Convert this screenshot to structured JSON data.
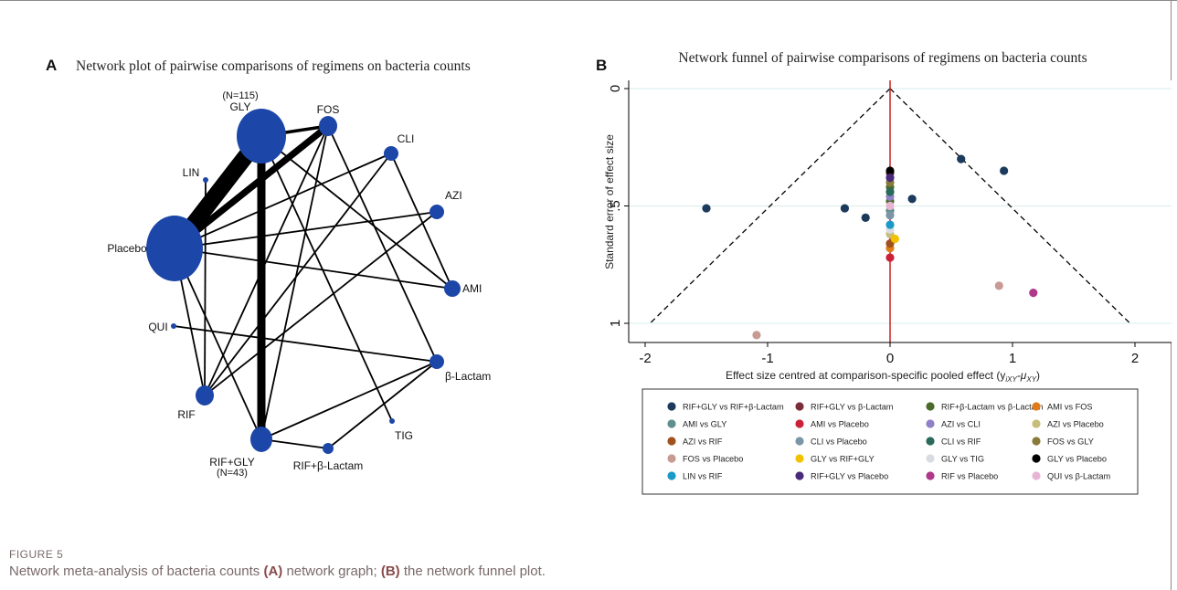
{
  "figure": {
    "label": "FIGURE 5",
    "caption_pre": "Network meta-analysis of bacteria counts ",
    "caption_a": "(A)",
    "caption_mid": " network graph; ",
    "caption_b": "(B)",
    "caption_post": " the network funnel plot."
  },
  "panel_a": {
    "letter": "A",
    "title": "Network plot of pairwise comparisons of regimens on bacteria counts"
  },
  "panel_b": {
    "letter": "B",
    "title": "Network funnel of pairwise comparisons of regimens on bacteria counts"
  },
  "chart_data": [
    {
      "type": "network",
      "title": "Network plot of pairwise comparisons of regimens on bacteria counts",
      "nodes": [
        {
          "id": "GLY",
          "label": "GLY",
          "note": "(N=115)",
          "size": 115
        },
        {
          "id": "FOS",
          "label": "FOS",
          "size": 12
        },
        {
          "id": "CLI",
          "label": "CLI",
          "size": 9
        },
        {
          "id": "LIN",
          "label": "LIN",
          "size": 2
        },
        {
          "id": "AZI",
          "label": "AZI",
          "size": 9
        },
        {
          "id": "Placebo",
          "label": "Placebo",
          "size": 130
        },
        {
          "id": "AMI",
          "label": "AMI",
          "size": 9
        },
        {
          "id": "QUI",
          "label": "QUI",
          "size": 2
        },
        {
          "id": "bLactam",
          "label": "β-Lactam",
          "size": 9
        },
        {
          "id": "RIF",
          "label": "RIF",
          "size": 14
        },
        {
          "id": "TIG",
          "label": "TIG",
          "size": 2
        },
        {
          "id": "RIFGLY",
          "label": "RIF+GLY",
          "note": "(N=43)",
          "size": 43
        },
        {
          "id": "RIFbLactam",
          "label": "RIF+β-Lactam",
          "size": 5
        }
      ],
      "edges": [
        {
          "source": "GLY",
          "target": "Placebo",
          "weight": 10
        },
        {
          "source": "GLY",
          "target": "RIFGLY",
          "weight": 5
        },
        {
          "source": "GLY",
          "target": "FOS",
          "weight": 2
        },
        {
          "source": "GLY",
          "target": "TIG",
          "weight": 1
        },
        {
          "source": "GLY",
          "target": "AMI",
          "weight": 1
        },
        {
          "source": "Placebo",
          "target": "FOS",
          "weight": 4
        },
        {
          "source": "Placebo",
          "target": "CLI",
          "weight": 1
        },
        {
          "source": "Placebo",
          "target": "AZI",
          "weight": 1
        },
        {
          "source": "Placebo",
          "target": "AMI",
          "weight": 1
        },
        {
          "source": "Placebo",
          "target": "RIF",
          "weight": 1
        },
        {
          "source": "Placebo",
          "target": "RIFGLY",
          "weight": 1
        },
        {
          "source": "LIN",
          "target": "RIF",
          "weight": 1
        },
        {
          "source": "FOS",
          "target": "RIF",
          "weight": 1
        },
        {
          "source": "FOS",
          "target": "bLactam",
          "weight": 1
        },
        {
          "source": "CLI",
          "target": "RIF",
          "weight": 1
        },
        {
          "source": "CLI",
          "target": "AMI",
          "weight": 1
        },
        {
          "source": "AZI",
          "target": "RIF",
          "weight": 1
        },
        {
          "source": "QUI",
          "target": "bLactam",
          "weight": 1
        },
        {
          "source": "bLactam",
          "target": "RIFGLY",
          "weight": 1
        },
        {
          "source": "bLactam",
          "target": "RIFbLactam",
          "weight": 1
        },
        {
          "source": "RIFGLY",
          "target": "RIFbLactam",
          "weight": 1
        },
        {
          "source": "RIFGLY",
          "target": "FOS",
          "weight": 1
        }
      ]
    },
    {
      "type": "scatter",
      "title": "Network funnel of pairwise comparisons of regimens on bacteria counts",
      "xlabel": "Effect size centred at comparison-specific pooled effect (y",
      "xlabel_sub1": "iXY",
      "xlabel_mid": "-μ",
      "xlabel_sub2": "XY",
      "xlabel_end": ")",
      "ylabel": "Standard error of effect size",
      "xlim": [
        -2,
        2
      ],
      "ylim": [
        1,
        0
      ],
      "y_reversed": true,
      "xticks": [
        "-2",
        "-1",
        "0",
        "1",
        "2"
      ],
      "xtick_values": [
        -2,
        -1,
        0,
        1,
        2
      ],
      "yticks": [
        "0",
        ".5",
        "1"
      ],
      "ytick_values": [
        0,
        0.5,
        1
      ],
      "reference_line": {
        "x": 0,
        "color": "#cc2222"
      },
      "funnel": {
        "apex": [
          0,
          0
        ],
        "base_left": [
          -1.96,
          1
        ],
        "base_right": [
          1.96,
          1
        ]
      },
      "series": [
        {
          "name": "RIF+GLY vs RIF+β-Lactam",
          "color": "#1b3a5c",
          "points": [
            [
              -1.5,
              0.51
            ],
            [
              -0.37,
              0.51
            ],
            [
              -0.2,
              0.55
            ],
            [
              0.18,
              0.47
            ],
            [
              0.58,
              0.3
            ],
            [
              0.93,
              0.35
            ]
          ]
        },
        {
          "name": "RIF+GLY vs β-Lactam",
          "color": "#7a2e3a",
          "points": [
            [
              0,
              0.36
            ]
          ]
        },
        {
          "name": "RIF+β-Lactam vs β-Lactam",
          "color": "#4b6b2a",
          "points": [
            [
              0,
              0.42
            ],
            [
              0,
              0.48
            ]
          ]
        },
        {
          "name": "AMI vs FOS",
          "color": "#e07b1a",
          "points": [
            [
              0,
              0.68
            ]
          ]
        },
        {
          "name": "AMI vs GLY",
          "color": "#5f8f8a",
          "points": [
            [
              0,
              0.52
            ]
          ]
        },
        {
          "name": "AMI vs Placebo",
          "color": "#cc2038",
          "points": [
            [
              0,
              0.72
            ]
          ]
        },
        {
          "name": "AZI vs CLI",
          "color": "#9080c8",
          "points": [
            [
              0,
              0.46
            ]
          ]
        },
        {
          "name": "AZI vs Placebo",
          "color": "#c8bc7a",
          "points": [
            [
              0,
              0.62
            ]
          ]
        },
        {
          "name": "AZI vs RIF",
          "color": "#a0521e",
          "points": [
            [
              0,
              0.66
            ]
          ]
        },
        {
          "name": "CLI vs Placebo",
          "color": "#7c96a8",
          "points": [
            [
              0,
              0.54
            ]
          ]
        },
        {
          "name": "CLI vs RIF",
          "color": "#2a6a5a",
          "points": [
            [
              0,
              0.44
            ]
          ]
        },
        {
          "name": "FOS vs GLY",
          "color": "#8a7a3a",
          "points": [
            [
              0,
              0.4
            ]
          ]
        },
        {
          "name": "FOS vs Placebo",
          "color": "#c89a94",
          "points": [
            [
              0.89,
              0.84
            ],
            [
              -1.09,
              1.05
            ]
          ]
        },
        {
          "name": "GLY vs RIF+GLY",
          "color": "#f2c200",
          "points": [
            [
              0.04,
              0.64
            ]
          ]
        },
        {
          "name": "GLY vs TIG",
          "color": "#d8dce2",
          "points": [
            [
              0,
              0.6
            ]
          ]
        },
        {
          "name": "GLY vs Placebo",
          "color": "#000000",
          "points": [
            [
              0,
              0.35
            ]
          ]
        },
        {
          "name": "LIN vs RIF",
          "color": "#1a9ac8",
          "points": [
            [
              0,
              0.58
            ]
          ]
        },
        {
          "name": "RIF+GLY vs Placebo",
          "color": "#4a2a7a",
          "points": [
            [
              0,
              0.38
            ]
          ]
        },
        {
          "name": "RIF vs Placebo",
          "color": "#b0388a",
          "points": [
            [
              1.17,
              0.87
            ]
          ]
        },
        {
          "name": "QUI vs β-Lactam",
          "color": "#e8b4d4",
          "points": [
            [
              0,
              0.5
            ]
          ]
        }
      ]
    }
  ]
}
